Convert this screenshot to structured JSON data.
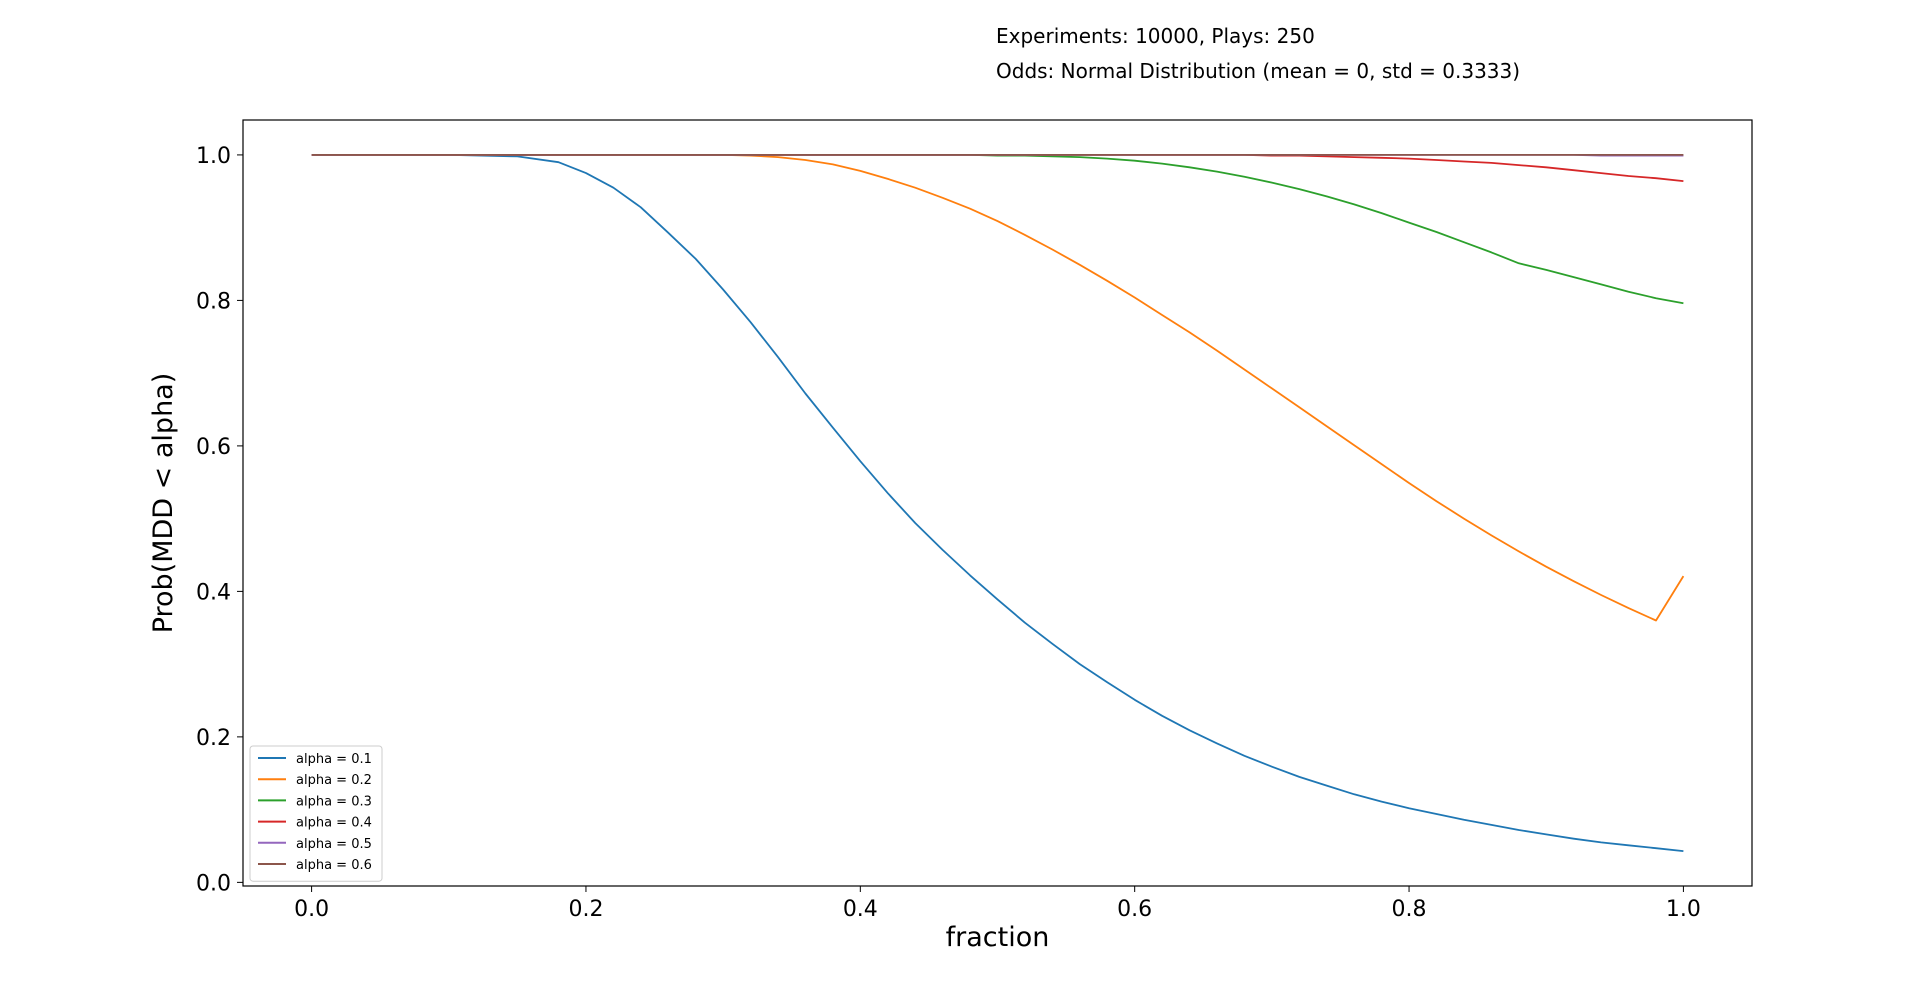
{
  "header": {
    "line1": "Experiments: 10000, Plays: 250",
    "line2": "Odds: Normal Distribution (mean = 0, std = 0.3333)"
  },
  "chart_data": {
    "type": "line",
    "title": "",
    "xlabel": "fraction",
    "ylabel": "Prob(MDD < alpha)",
    "xlim": [
      -0.05,
      1.05
    ],
    "ylim": [
      -0.005,
      1.048
    ],
    "xticks": [
      0.0,
      0.2,
      0.4,
      0.6,
      0.8,
      1.0
    ],
    "xtick_labels": [
      "0.0",
      "0.2",
      "0.4",
      "0.6",
      "0.8",
      "1.0"
    ],
    "yticks": [
      0.0,
      0.2,
      0.4,
      0.6,
      0.8,
      1.0
    ],
    "ytick_labels": [
      "0.0",
      "0.2",
      "0.4",
      "0.6",
      "0.8",
      "1.0"
    ],
    "grid": false,
    "legend_position": "lower-left",
    "x": [
      0.0,
      0.05,
      0.1,
      0.15,
      0.18,
      0.2,
      0.22,
      0.24,
      0.26,
      0.28,
      0.3,
      0.32,
      0.34,
      0.36,
      0.38,
      0.4,
      0.42,
      0.44,
      0.46,
      0.48,
      0.5,
      0.52,
      0.54,
      0.56,
      0.58,
      0.6,
      0.62,
      0.64,
      0.66,
      0.68,
      0.7,
      0.72,
      0.74,
      0.76,
      0.78,
      0.8,
      0.82,
      0.84,
      0.86,
      0.88,
      0.9,
      0.92,
      0.94,
      0.96,
      0.98,
      1.0
    ],
    "series": [
      {
        "name": "alpha = 0.1",
        "color": "#1f77b4",
        "values": [
          1.0,
          1.0,
          1.0,
          0.998,
          0.99,
          0.975,
          0.955,
          0.928,
          0.893,
          0.857,
          0.815,
          0.77,
          0.722,
          0.672,
          0.625,
          0.579,
          0.535,
          0.494,
          0.457,
          0.422,
          0.389,
          0.357,
          0.328,
          0.3,
          0.275,
          0.251,
          0.229,
          0.209,
          0.191,
          0.174,
          0.159,
          0.145,
          0.133,
          0.121,
          0.111,
          0.102,
          0.094,
          0.086,
          0.079,
          0.072,
          0.066,
          0.06,
          0.055,
          0.051,
          0.047,
          0.043
        ]
      },
      {
        "name": "alpha = 0.2",
        "color": "#ff7f0e",
        "values": [
          1.0,
          1.0,
          1.0,
          1.0,
          1.0,
          1.0,
          1.0,
          1.0,
          1.0,
          1.0,
          1.0,
          0.999,
          0.997,
          0.993,
          0.987,
          0.978,
          0.967,
          0.955,
          0.941,
          0.926,
          0.909,
          0.89,
          0.87,
          0.849,
          0.827,
          0.804,
          0.78,
          0.756,
          0.731,
          0.705,
          0.679,
          0.653,
          0.627,
          0.601,
          0.575,
          0.549,
          0.524,
          0.5,
          0.477,
          0.455,
          0.434,
          0.414,
          0.395,
          0.377,
          0.36,
          0.421
        ]
      },
      {
        "name": "alpha = 0.3",
        "color": "#2ca02c",
        "values": [
          1.0,
          1.0,
          1.0,
          1.0,
          1.0,
          1.0,
          1.0,
          1.0,
          1.0,
          1.0,
          1.0,
          1.0,
          1.0,
          1.0,
          1.0,
          1.0,
          1.0,
          1.0,
          1.0,
          1.0,
          0.999,
          0.999,
          0.998,
          0.997,
          0.995,
          0.992,
          0.988,
          0.983,
          0.977,
          0.97,
          0.962,
          0.953,
          0.943,
          0.932,
          0.92,
          0.907,
          0.894,
          0.88,
          0.866,
          0.851,
          0.842,
          0.832,
          0.822,
          0.812,
          0.803,
          0.796
        ]
      },
      {
        "name": "alpha = 0.4",
        "color": "#d62728",
        "values": [
          1.0,
          1.0,
          1.0,
          1.0,
          1.0,
          1.0,
          1.0,
          1.0,
          1.0,
          1.0,
          1.0,
          1.0,
          1.0,
          1.0,
          1.0,
          1.0,
          1.0,
          1.0,
          1.0,
          1.0,
          1.0,
          1.0,
          1.0,
          1.0,
          1.0,
          1.0,
          1.0,
          1.0,
          1.0,
          1.0,
          0.999,
          0.999,
          0.998,
          0.997,
          0.996,
          0.995,
          0.993,
          0.991,
          0.989,
          0.986,
          0.983,
          0.979,
          0.975,
          0.971,
          0.968,
          0.964
        ]
      },
      {
        "name": "alpha = 0.5",
        "color": "#9467bd",
        "values": [
          1.0,
          1.0,
          1.0,
          1.0,
          1.0,
          1.0,
          1.0,
          1.0,
          1.0,
          1.0,
          1.0,
          1.0,
          1.0,
          1.0,
          1.0,
          1.0,
          1.0,
          1.0,
          1.0,
          1.0,
          1.0,
          1.0,
          1.0,
          1.0,
          1.0,
          1.0,
          1.0,
          1.0,
          1.0,
          1.0,
          1.0,
          1.0,
          1.0,
          1.0,
          1.0,
          1.0,
          1.0,
          1.0,
          1.0,
          1.0,
          1.0,
          1.0,
          0.999,
          0.999,
          0.999,
          0.999
        ]
      },
      {
        "name": "alpha = 0.6",
        "color": "#8c564b",
        "values": [
          1.0,
          1.0,
          1.0,
          1.0,
          1.0,
          1.0,
          1.0,
          1.0,
          1.0,
          1.0,
          1.0,
          1.0,
          1.0,
          1.0,
          1.0,
          1.0,
          1.0,
          1.0,
          1.0,
          1.0,
          1.0,
          1.0,
          1.0,
          1.0,
          1.0,
          1.0,
          1.0,
          1.0,
          1.0,
          1.0,
          1.0,
          1.0,
          1.0,
          1.0,
          1.0,
          1.0,
          1.0,
          1.0,
          1.0,
          1.0,
          1.0,
          1.0,
          1.0,
          1.0,
          1.0,
          1.0
        ]
      }
    ]
  }
}
